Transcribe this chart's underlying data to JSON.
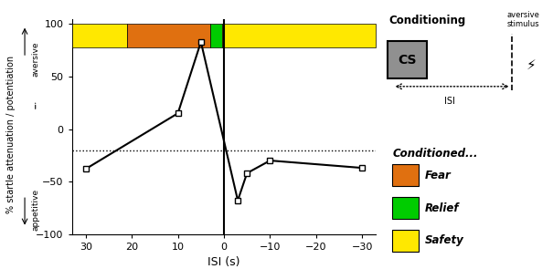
{
  "x_data": [
    30,
    10,
    5,
    -3,
    -5,
    -10,
    -30
  ],
  "y_data": [
    -38,
    15,
    83,
    -68,
    -42,
    -30,
    -37
  ],
  "dotted_y": -20,
  "vline_x": 0,
  "xlim": [
    33,
    -33
  ],
  "ylim": [
    -100,
    105
  ],
  "xticks": [
    30,
    20,
    10,
    0,
    -10,
    -20,
    -30
  ],
  "yticks": [
    -100,
    -50,
    0,
    50,
    100
  ],
  "xlabel": "ISI (s)",
  "bar_segments": [
    {
      "xmin": 33,
      "xmax": 21,
      "color": "#FFE800"
    },
    {
      "xmin": 21,
      "xmax": 3,
      "color": "#E07010"
    },
    {
      "xmin": 3,
      "xmax": 0.5,
      "color": "#00CC00"
    },
    {
      "xmin": 0.5,
      "xmax": -33,
      "color": "#FFE800"
    }
  ],
  "bar_ymin": 78,
  "bar_ymax": 100,
  "legend_items": [
    {
      "color": "#E07010",
      "label": "Fear"
    },
    {
      "color": "#00CC00",
      "label": "Relief"
    },
    {
      "color": "#FFE800",
      "label": "Safety"
    }
  ],
  "panel_bg": "#dcdcdc"
}
